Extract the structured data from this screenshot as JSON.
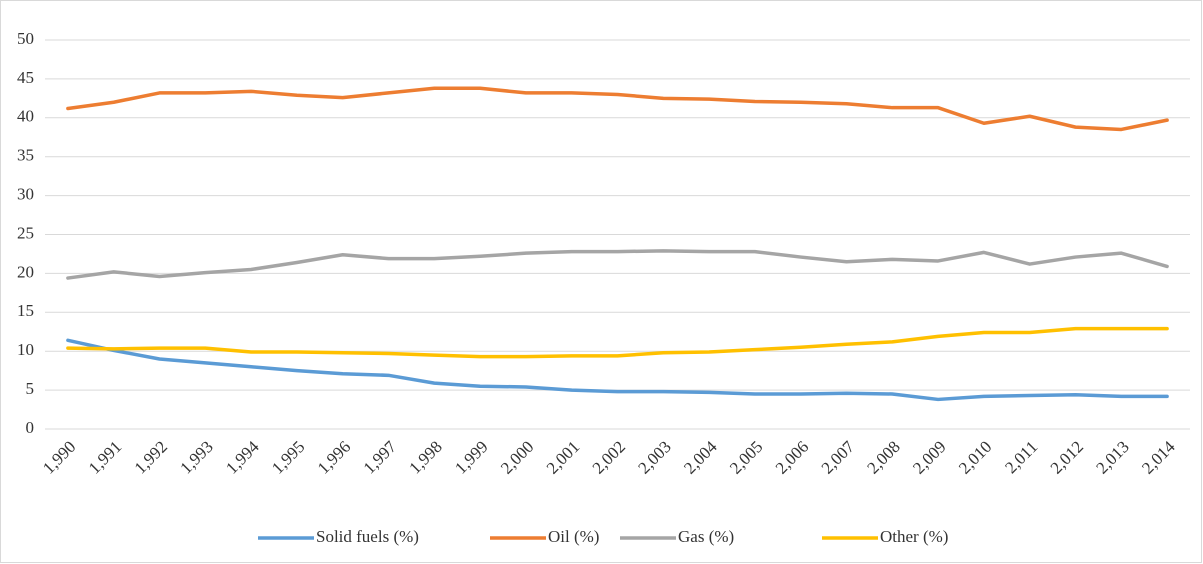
{
  "chart_data": {
    "type": "line",
    "categories": [
      "1,990",
      "1,991",
      "1,992",
      "1,993",
      "1,994",
      "1,995",
      "1,996",
      "1,997",
      "1,998",
      "1,999",
      "2,000",
      "2,001",
      "2,002",
      "2,003",
      "2,004",
      "2,005",
      "2,006",
      "2,007",
      "2,008",
      "2,009",
      "2,010",
      "2,011",
      "2,012",
      "2,013",
      "2,014"
    ],
    "series": [
      {
        "name": "Solid fuels (%)",
        "color": "#5b9bd5",
        "values": [
          11.4,
          10.1,
          9.0,
          8.5,
          8.0,
          7.5,
          7.1,
          6.9,
          5.9,
          5.5,
          5.4,
          5.0,
          4.8,
          4.8,
          4.7,
          4.5,
          4.5,
          4.6,
          4.5,
          3.8,
          4.2,
          4.3,
          4.4,
          4.2,
          4.2
        ]
      },
      {
        "name": "Oil (%)",
        "color": "#ed7d31",
        "values": [
          41.2,
          42.0,
          43.2,
          43.2,
          43.4,
          42.9,
          42.6,
          43.2,
          43.8,
          43.8,
          43.2,
          43.2,
          43.0,
          42.5,
          42.4,
          42.1,
          42.0,
          41.8,
          41.3,
          41.3,
          39.3,
          40.2,
          38.8,
          38.5,
          39.7
        ]
      },
      {
        "name": "Gas (%)",
        "color": "#a5a5a5",
        "values": [
          19.4,
          20.2,
          19.6,
          20.1,
          20.5,
          21.4,
          22.4,
          21.9,
          21.9,
          22.2,
          22.6,
          22.8,
          22.8,
          22.9,
          22.8,
          22.8,
          22.1,
          21.5,
          21.8,
          21.6,
          22.7,
          21.2,
          22.1,
          22.6,
          20.9
        ]
      },
      {
        "name": "Other (%)",
        "color": "#ffc000",
        "values": [
          10.4,
          10.3,
          10.4,
          10.4,
          9.9,
          9.9,
          9.8,
          9.7,
          9.5,
          9.3,
          9.3,
          9.4,
          9.4,
          9.8,
          9.9,
          10.2,
          10.5,
          10.9,
          11.2,
          11.9,
          12.4,
          12.4,
          12.9,
          12.9,
          12.9
        ]
      }
    ],
    "ylim": [
      0,
      50
    ],
    "yticks": [
      0,
      5,
      10,
      15,
      20,
      25,
      30,
      35,
      40,
      45,
      50
    ],
    "grid": true,
    "legend": "bottom"
  }
}
